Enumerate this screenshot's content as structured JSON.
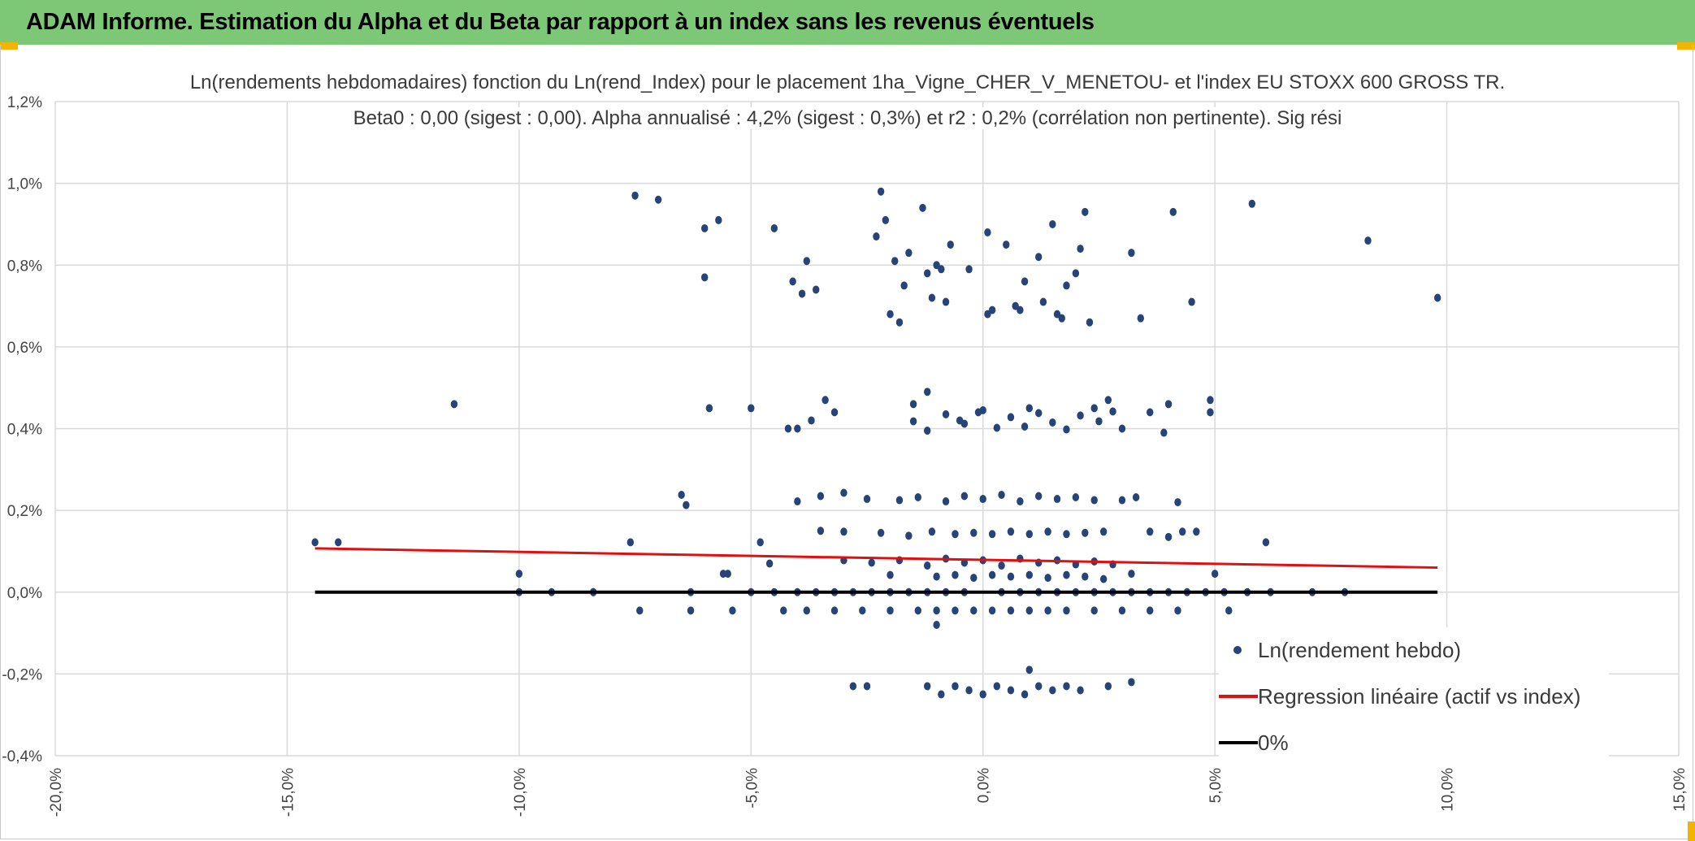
{
  "page": {
    "banner_title": "ADAM Informe. Estimation du Alpha et du Beta par rapport à un index sans les revenus éventuels"
  },
  "colors": {
    "banner": "#7dc876",
    "scatter": "#264478",
    "regression": "#e01010",
    "zero_line": "#000000",
    "grid": "#d9d9d9"
  },
  "chart_data": {
    "type": "scatter",
    "title": "Ln(rendements hebdomadaires) fonction du Ln(rend_Index) pour le placement 1ha_Vigne_CHER_V_MENETOU- et l'index EU STOXX 600 GROSS TR.",
    "subtitle": "Beta0 : 0,00 (sigest : 0,00). Alpha annualisé : 4,2% (sigest : 0,3%) et r2 : 0,2% (corrélation non pertinente). Sig rési",
    "xlabel": "",
    "ylabel": "",
    "xlim": [
      -0.2,
      0.15
    ],
    "ylim": [
      -0.004,
      0.012
    ],
    "x_ticks": [
      -0.2,
      -0.15,
      -0.1,
      -0.05,
      0.0,
      0.05,
      0.1,
      0.15
    ],
    "x_tick_labels": [
      "-20,0%",
      "-15,0%",
      "-10,0%",
      "-5,0%",
      "0,0%",
      "5,0%",
      "10,0%",
      "15,0%"
    ],
    "y_ticks": [
      -0.004,
      -0.002,
      0.0,
      0.002,
      0.004,
      0.006,
      0.008,
      0.01,
      0.012
    ],
    "y_tick_labels": [
      "-0,4%",
      "-0,2%",
      "0,0%",
      "0,2%",
      "0,4%",
      "0,6%",
      "0,8%",
      "1,0%",
      "1,2%"
    ],
    "grid": true,
    "legend": {
      "position": "bottom-right",
      "entries": [
        "Ln(rendement hebdo)",
        "Regression linéaire (actif vs index)",
        "0%"
      ]
    },
    "series": [
      {
        "name": "Ln(rendement hebdo)",
        "kind": "scatter",
        "points": [
          [
            -0.144,
            0.00122
          ],
          [
            -0.139,
            0.00122
          ],
          [
            -0.114,
            0.0046
          ],
          [
            -0.1,
            0.00045
          ],
          [
            -0.1,
            0.0
          ],
          [
            -0.093,
            0.0
          ],
          [
            -0.084,
            0.0
          ],
          [
            -0.084,
            0.0
          ],
          [
            -0.075,
            0.0097
          ],
          [
            -0.074,
            -0.00045
          ],
          [
            -0.076,
            0.00122
          ],
          [
            -0.07,
            0.0096
          ],
          [
            -0.065,
            0.00238
          ],
          [
            -0.064,
            0.00213
          ],
          [
            -0.063,
            -0.00045
          ],
          [
            -0.063,
            0.0
          ],
          [
            -0.06,
            0.0089
          ],
          [
            -0.06,
            0.0077
          ],
          [
            -0.059,
            0.0045
          ],
          [
            -0.057,
            0.0091
          ],
          [
            -0.056,
            0.00045
          ],
          [
            -0.055,
            0.00045
          ],
          [
            -0.054,
            -0.00045
          ],
          [
            -0.05,
            0.0045
          ],
          [
            -0.048,
            0.00122
          ],
          [
            -0.046,
            0.0007
          ],
          [
            -0.045,
            0.0089
          ],
          [
            -0.043,
            -0.00045
          ],
          [
            -0.042,
            0.004
          ],
          [
            -0.041,
            0.0076
          ],
          [
            -0.04,
            0.004
          ],
          [
            -0.039,
            0.0073
          ],
          [
            -0.038,
            0.0081
          ],
          [
            -0.037,
            0.0042
          ],
          [
            -0.036,
            0.0074
          ],
          [
            -0.035,
            0.0015
          ],
          [
            -0.034,
            0.0047
          ],
          [
            -0.032,
            0.0044
          ],
          [
            -0.03,
            0.00243
          ],
          [
            -0.028,
            -0.0023
          ],
          [
            -0.025,
            -0.0023
          ],
          [
            -0.023,
            0.0087
          ],
          [
            -0.022,
            0.0098
          ],
          [
            -0.021,
            0.0091
          ],
          [
            -0.02,
            0.0068
          ],
          [
            -0.019,
            0.0081
          ],
          [
            -0.018,
            0.0066
          ],
          [
            -0.017,
            0.0075
          ],
          [
            -0.016,
            0.0083
          ],
          [
            -0.015,
            0.0046
          ],
          [
            -0.013,
            0.0094
          ],
          [
            -0.012,
            0.0078
          ],
          [
            -0.012,
            0.0049
          ],
          [
            -0.011,
            0.0072
          ],
          [
            -0.01,
            0.008
          ],
          [
            -0.009,
            0.0079
          ],
          [
            -0.008,
            0.0071
          ],
          [
            -0.007,
            0.0085
          ],
          [
            -0.005,
            0.0042
          ],
          [
            -0.003,
            0.0079
          ],
          [
            -0.001,
            0.0044
          ],
          [
            0.001,
            0.0088
          ],
          [
            0.001,
            0.0068
          ],
          [
            0.002,
            0.0069
          ],
          [
            0.005,
            0.0085
          ],
          [
            0.007,
            0.007
          ],
          [
            0.008,
            0.0069
          ],
          [
            0.009,
            0.0076
          ],
          [
            0.01,
            0.0045
          ],
          [
            0.012,
            0.0082
          ],
          [
            0.013,
            0.0071
          ],
          [
            0.015,
            0.009
          ],
          [
            0.016,
            0.0068
          ],
          [
            0.017,
            0.0067
          ],
          [
            0.018,
            0.0075
          ],
          [
            0.02,
            0.0078
          ],
          [
            0.021,
            0.0084
          ],
          [
            0.022,
            0.0093
          ],
          [
            0.023,
            0.0066
          ],
          [
            0.024,
            0.0045
          ],
          [
            0.027,
            0.0047
          ],
          [
            0.03,
            0.004
          ],
          [
            0.032,
            0.0083
          ],
          [
            0.034,
            0.0067
          ],
          [
            0.036,
            0.0044
          ],
          [
            0.039,
            0.0039
          ],
          [
            0.04,
            0.0046
          ],
          [
            0.041,
            0.0093
          ],
          [
            0.042,
            0.0022
          ],
          [
            0.045,
            0.0071
          ],
          [
            0.049,
            0.0047
          ],
          [
            0.049,
            0.0044
          ],
          [
            0.05,
            0.00045
          ],
          [
            0.053,
            -0.00045
          ],
          [
            0.058,
            0.0095
          ],
          [
            0.061,
            0.00122
          ],
          [
            0.083,
            0.0086
          ],
          [
            0.098,
            0.0072
          ],
          [
            0.057,
            0.0
          ],
          [
            0.062,
            0.0
          ],
          [
            0.071,
            0.0
          ],
          [
            0.078,
            0.0
          ],
          [
            -0.04,
            0.00222
          ],
          [
            -0.035,
            0.00235
          ],
          [
            -0.03,
            0.00148
          ],
          [
            -0.025,
            0.00228
          ],
          [
            -0.022,
            0.00145
          ],
          [
            -0.018,
            0.00225
          ],
          [
            -0.016,
            0.00138
          ],
          [
            -0.014,
            0.00232
          ],
          [
            -0.011,
            0.00148
          ],
          [
            -0.008,
            0.00222
          ],
          [
            -0.006,
            0.00142
          ],
          [
            -0.004,
            0.00235
          ],
          [
            -0.002,
            0.00145
          ],
          [
            0.0,
            0.00228
          ],
          [
            0.002,
            0.00142
          ],
          [
            0.004,
            0.00238
          ],
          [
            0.006,
            0.00148
          ],
          [
            0.008,
            0.00222
          ],
          [
            0.01,
            0.00142
          ],
          [
            0.012,
            0.00235
          ],
          [
            0.014,
            0.00148
          ],
          [
            0.016,
            0.00228
          ],
          [
            0.018,
            0.00142
          ],
          [
            0.02,
            0.00232
          ],
          [
            0.022,
            0.00145
          ],
          [
            0.024,
            0.00225
          ],
          [
            0.026,
            0.00148
          ],
          [
            0.03,
            0.00225
          ],
          [
            0.033,
            0.00232
          ],
          [
            0.036,
            0.00148
          ],
          [
            0.04,
            0.00135
          ],
          [
            0.043,
            0.00148
          ],
          [
            0.046,
            0.00148
          ],
          [
            -0.02,
            0.00042
          ],
          [
            -0.015,
            0.00418
          ],
          [
            -0.012,
            0.00395
          ],
          [
            -0.008,
            0.00435
          ],
          [
            -0.004,
            0.00412
          ],
          [
            0.0,
            0.00445
          ],
          [
            0.003,
            0.00402
          ],
          [
            0.006,
            0.00428
          ],
          [
            0.009,
            0.00405
          ],
          [
            0.012,
            0.00438
          ],
          [
            0.015,
            0.00415
          ],
          [
            0.018,
            0.00398
          ],
          [
            0.021,
            0.00432
          ],
          [
            0.025,
            0.00418
          ],
          [
            0.028,
            0.00442
          ],
          [
            -0.03,
            0.00078
          ],
          [
            -0.024,
            0.00072
          ],
          [
            -0.018,
            0.00078
          ],
          [
            -0.012,
            0.00065
          ],
          [
            -0.008,
            0.00082
          ],
          [
            -0.004,
            0.00072
          ],
          [
            0.0,
            0.00078
          ],
          [
            0.004,
            0.00065
          ],
          [
            0.008,
            0.00082
          ],
          [
            0.012,
            0.00072
          ],
          [
            0.016,
            0.00078
          ],
          [
            0.02,
            0.00068
          ],
          [
            0.024,
            0.00075
          ],
          [
            0.028,
            0.00068
          ],
          [
            0.032,
            0.00045
          ],
          [
            -0.01,
            0.00038
          ],
          [
            -0.006,
            0.00042
          ],
          [
            -0.002,
            0.00035
          ],
          [
            0.002,
            0.00042
          ],
          [
            0.006,
            0.00038
          ],
          [
            0.01,
            0.00042
          ],
          [
            0.014,
            0.00035
          ],
          [
            0.018,
            0.00042
          ],
          [
            0.022,
            0.00038
          ],
          [
            0.026,
            0.00032
          ],
          [
            -0.05,
            0.0
          ],
          [
            -0.045,
            0.0
          ],
          [
            -0.04,
            0.0
          ],
          [
            -0.036,
            0.0
          ],
          [
            -0.032,
            0.0
          ],
          [
            -0.028,
            0.0
          ],
          [
            -0.024,
            0.0
          ],
          [
            -0.02,
            0.0
          ],
          [
            -0.016,
            0.0
          ],
          [
            -0.012,
            0.0
          ],
          [
            -0.008,
            0.0
          ],
          [
            -0.004,
            0.0
          ],
          [
            0.004,
            0.0
          ],
          [
            0.008,
            0.0
          ],
          [
            0.012,
            0.0
          ],
          [
            0.016,
            0.0
          ],
          [
            0.02,
            0.0
          ],
          [
            0.024,
            0.0
          ],
          [
            0.028,
            0.0
          ],
          [
            0.032,
            0.0
          ],
          [
            0.036,
            0.0
          ],
          [
            0.04,
            0.0
          ],
          [
            0.044,
            0.0
          ],
          [
            0.048,
            0.0
          ],
          [
            0.052,
            0.0
          ],
          [
            -0.038,
            -0.00045
          ],
          [
            -0.032,
            -0.00045
          ],
          [
            -0.026,
            -0.00045
          ],
          [
            -0.02,
            -0.00045
          ],
          [
            -0.014,
            -0.00045
          ],
          [
            -0.01,
            -0.00045
          ],
          [
            -0.006,
            -0.00045
          ],
          [
            -0.002,
            -0.00045
          ],
          [
            0.002,
            -0.00045
          ],
          [
            0.006,
            -0.00045
          ],
          [
            0.01,
            -0.00045
          ],
          [
            0.014,
            -0.00045
          ],
          [
            0.018,
            -0.00045
          ],
          [
            0.024,
            -0.00045
          ],
          [
            0.03,
            -0.00045
          ],
          [
            0.036,
            -0.00045
          ],
          [
            0.042,
            -0.00045
          ],
          [
            -0.01,
            -0.0008
          ],
          [
            -0.012,
            -0.0023
          ],
          [
            -0.009,
            -0.0025
          ],
          [
            -0.006,
            -0.0023
          ],
          [
            -0.003,
            -0.0024
          ],
          [
            0.0,
            -0.0025
          ],
          [
            0.003,
            -0.0023
          ],
          [
            0.006,
            -0.0024
          ],
          [
            0.009,
            -0.0025
          ],
          [
            0.01,
            -0.0019
          ],
          [
            0.012,
            -0.0023
          ],
          [
            0.015,
            -0.0024
          ],
          [
            0.018,
            -0.0023
          ],
          [
            0.021,
            -0.0024
          ],
          [
            0.027,
            -0.0023
          ],
          [
            0.032,
            -0.0022
          ]
        ]
      },
      {
        "name": "Regression linéaire (actif vs index)",
        "kind": "line",
        "points": [
          [
            -0.144,
            0.00107
          ],
          [
            0.098,
            0.0006
          ]
        ]
      },
      {
        "name": "0%",
        "kind": "line",
        "points": [
          [
            -0.144,
            0.0
          ],
          [
            0.098,
            0.0
          ]
        ]
      }
    ]
  }
}
